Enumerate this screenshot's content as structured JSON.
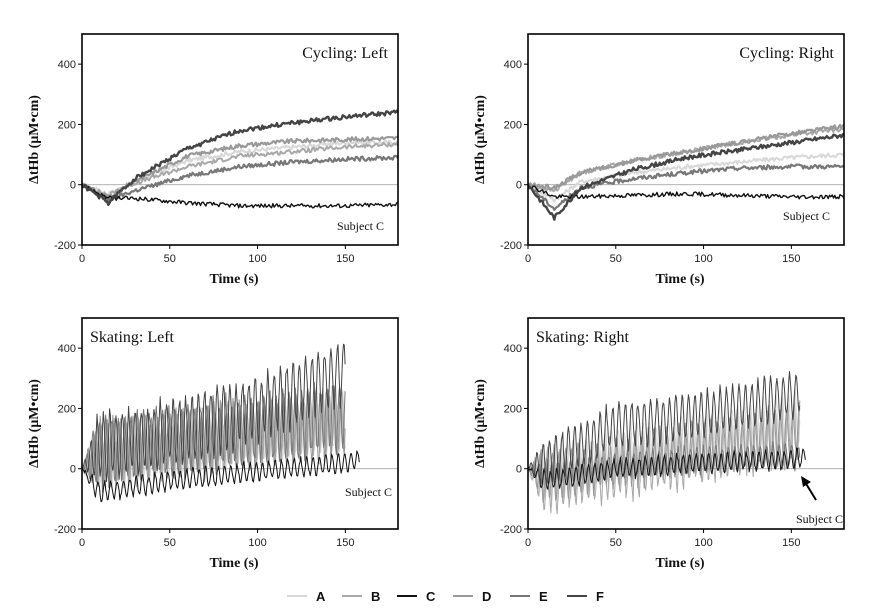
{
  "chart_data": [
    {
      "type": "line",
      "title": "Cycling: Left",
      "xlabel": "Time (s)",
      "ylabel": "ΔtHb (μM•cm)",
      "xlim": [
        0,
        180
      ],
      "ylim": [
        -200,
        500
      ],
      "xticks": [
        0,
        50,
        100,
        150
      ],
      "yticks": [
        -200,
        0,
        200,
        400
      ],
      "annotation": "Subject C",
      "pattern": "smooth",
      "series": [
        {
          "name": "A",
          "x": [
            0,
            15,
            30,
            60,
            90,
            120,
            150,
            180
          ],
          "values": [
            0,
            -30,
            10,
            80,
            110,
            125,
            140,
            140
          ]
        },
        {
          "name": "B",
          "x": [
            0,
            15,
            30,
            60,
            90,
            120,
            150,
            180
          ],
          "values": [
            0,
            -35,
            5,
            60,
            95,
            110,
            125,
            135
          ]
        },
        {
          "name": "C",
          "x": [
            0,
            15,
            30,
            60,
            90,
            120,
            150,
            180
          ],
          "values": [
            0,
            -45,
            -45,
            -60,
            -70,
            -70,
            -70,
            -65
          ]
        },
        {
          "name": "D",
          "x": [
            0,
            15,
            30,
            60,
            90,
            120,
            150,
            180
          ],
          "values": [
            0,
            -40,
            10,
            95,
            130,
            145,
            150,
            155
          ]
        },
        {
          "name": "E",
          "x": [
            0,
            15,
            30,
            60,
            90,
            120,
            150,
            180
          ],
          "values": [
            0,
            -50,
            -20,
            30,
            60,
            75,
            85,
            90
          ]
        },
        {
          "name": "F",
          "x": [
            0,
            15,
            30,
            60,
            90,
            120,
            150,
            180
          ],
          "values": [
            0,
            -60,
            20,
            120,
            180,
            205,
            225,
            240
          ]
        }
      ]
    },
    {
      "type": "line",
      "title": "Cycling: Right",
      "xlabel": "Time (s)",
      "ylabel": "ΔtHb (μM•cm)",
      "xlim": [
        0,
        180
      ],
      "ylim": [
        -200,
        500
      ],
      "xticks": [
        0,
        50,
        100,
        150
      ],
      "yticks": [
        -200,
        0,
        200,
        400
      ],
      "annotation": "Subject C",
      "pattern": "smooth",
      "series": [
        {
          "name": "A",
          "x": [
            0,
            15,
            30,
            60,
            90,
            120,
            150,
            180
          ],
          "values": [
            0,
            -50,
            10,
            40,
            60,
            75,
            90,
            100
          ]
        },
        {
          "name": "B",
          "x": [
            0,
            15,
            30,
            60,
            90,
            120,
            150,
            180
          ],
          "values": [
            0,
            -20,
            40,
            80,
            110,
            140,
            165,
            185
          ]
        },
        {
          "name": "C",
          "x": [
            0,
            15,
            30,
            60,
            90,
            120,
            150,
            180
          ],
          "values": [
            0,
            -40,
            -40,
            -35,
            -30,
            -35,
            -40,
            -40
          ]
        },
        {
          "name": "D",
          "x": [
            0,
            15,
            30,
            60,
            90,
            120,
            150,
            180
          ],
          "values": [
            0,
            -10,
            40,
            80,
            110,
            140,
            170,
            195
          ]
        },
        {
          "name": "E",
          "x": [
            0,
            15,
            30,
            60,
            90,
            120,
            150,
            180
          ],
          "values": [
            0,
            -80,
            -10,
            20,
            40,
            55,
            60,
            60
          ]
        },
        {
          "name": "F",
          "x": [
            0,
            15,
            30,
            60,
            90,
            120,
            150,
            180
          ],
          "values": [
            0,
            -110,
            -10,
            50,
            90,
            115,
            140,
            165
          ]
        }
      ]
    },
    {
      "type": "line",
      "title": "Skating: Left",
      "xlabel": "Time (s)",
      "ylabel": "ΔtHb (μM•cm)",
      "xlim": [
        0,
        180
      ],
      "ylim": [
        -200,
        500
      ],
      "xticks": [
        0,
        50,
        100,
        150
      ],
      "yticks": [
        -200,
        0,
        200,
        400
      ],
      "annotation": "Subject C",
      "pattern": "oscillating",
      "series": [
        {
          "name": "A",
          "x": [
            0,
            10,
            50,
            100,
            140,
            150
          ],
          "values": [
            0,
            20,
            50,
            100,
            150,
            160
          ],
          "amp": 80
        },
        {
          "name": "B",
          "x": [
            0,
            10,
            50,
            100,
            140,
            150
          ],
          "values": [
            0,
            40,
            80,
            120,
            160,
            160
          ],
          "amp": 100
        },
        {
          "name": "C",
          "x": [
            0,
            10,
            50,
            100,
            150,
            158
          ],
          "values": [
            0,
            -80,
            -40,
            -10,
            20,
            30
          ],
          "amp": 30
        },
        {
          "name": "D",
          "x": [
            0,
            10,
            50,
            100,
            140,
            150
          ],
          "values": [
            0,
            50,
            80,
            110,
            140,
            150
          ],
          "amp": 110
        },
        {
          "name": "E",
          "x": [
            0,
            10,
            50,
            100,
            140,
            150
          ],
          "values": [
            0,
            60,
            90,
            130,
            170,
            180
          ],
          "amp": 110
        },
        {
          "name": "F",
          "x": [
            0,
            10,
            50,
            100,
            140,
            150
          ],
          "values": [
            0,
            70,
            120,
            200,
            300,
            330
          ],
          "amp": 100
        }
      ]
    },
    {
      "type": "line",
      "title": "Skating: Right",
      "xlabel": "Time (s)",
      "ylabel": "ΔtHb (μM•cm)",
      "xlim": [
        0,
        180
      ],
      "ylim": [
        -200,
        500
      ],
      "xticks": [
        0,
        50,
        100,
        150
      ],
      "yticks": [
        -200,
        0,
        200,
        400
      ],
      "annotation": "Subject C",
      "pattern": "oscillating",
      "series": [
        {
          "name": "A",
          "x": [
            0,
            10,
            50,
            100,
            140,
            155
          ],
          "values": [
            0,
            -20,
            40,
            100,
            140,
            160
          ],
          "amp": 90
        },
        {
          "name": "B",
          "x": [
            0,
            10,
            50,
            100,
            140,
            155
          ],
          "values": [
            0,
            -40,
            0,
            60,
            110,
            130
          ],
          "amp": 100
        },
        {
          "name": "C",
          "x": [
            0,
            10,
            50,
            100,
            150,
            158
          ],
          "values": [
            0,
            -40,
            0,
            20,
            30,
            40
          ],
          "amp": 30
        },
        {
          "name": "D",
          "x": [
            0,
            10,
            50,
            100,
            140,
            155
          ],
          "values": [
            0,
            -30,
            20,
            70,
            110,
            130
          ],
          "amp": 80
        },
        {
          "name": "E",
          "x": [
            0,
            10,
            50,
            100,
            140,
            155
          ],
          "values": [
            0,
            -20,
            10,
            30,
            40,
            40
          ],
          "amp": 40
        },
        {
          "name": "F",
          "x": [
            0,
            10,
            50,
            100,
            140,
            155
          ],
          "values": [
            0,
            20,
            140,
            180,
            230,
            250
          ],
          "amp": 70
        }
      ]
    }
  ],
  "legend": {
    "placement": "bottom",
    "items": [
      {
        "label": "A",
        "color": "#d8d8d8"
      },
      {
        "label": "B",
        "color": "#a8a8a8"
      },
      {
        "label": "C",
        "color": "#111111"
      },
      {
        "label": "D",
        "color": "#999999"
      },
      {
        "label": "E",
        "color": "#777777"
      },
      {
        "label": "F",
        "color": "#444444"
      }
    ]
  }
}
